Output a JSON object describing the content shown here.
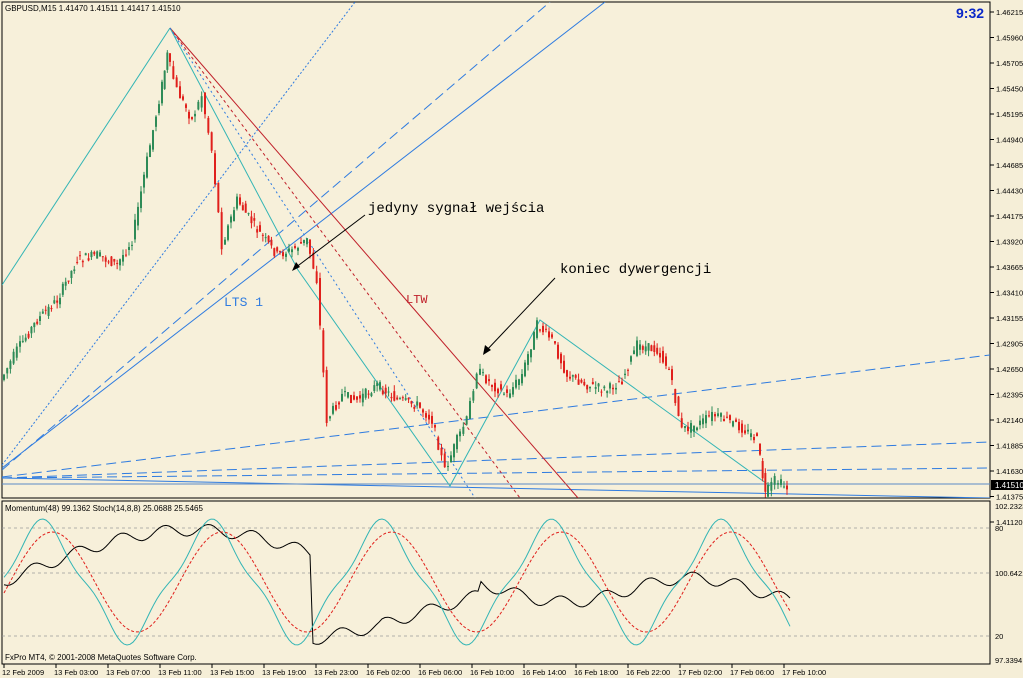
{
  "colors": {
    "background": "#F5EED7",
    "chart_bg": "#F7F0DA",
    "bull": "#2E8B57",
    "bear": "#E0201C",
    "trendline": "#2E7BE0",
    "teal": "#33B5B5",
    "ltw": "#C0202A",
    "clock": "#0B28C8"
  },
  "header": {
    "symbol_info": "GBPUSD,M15  1.41470 1.41511 1.41417 1.41510",
    "clock": "9:32"
  },
  "annotations": {
    "entry_signal": "jedyny sygnał wejścia",
    "divergence_end": "koniec dywergencji",
    "lts": "LTS 1",
    "ltw": "LTW"
  },
  "price_axis": {
    "labels": [
      "1.46215",
      "1.45960",
      "1.45705",
      "1.45450",
      "1.45195",
      "1.44940",
      "1.44685",
      "1.44430",
      "1.44175",
      "1.43920",
      "1.43665",
      "1.43410",
      "1.43155",
      "1.42905",
      "1.42650",
      "1.42395",
      "1.42140",
      "1.41885",
      "1.41630",
      "1.41375",
      "1.41120"
    ],
    "current_price": "1.41510"
  },
  "indicator": {
    "label": "Momentum(48) 99.1362  Stoch(14,8,8) 25.0688 25.5465",
    "axis_labels": [
      "102.2323",
      "80",
      "100.6421",
      "20",
      "97.3394"
    ]
  },
  "time_axis": {
    "labels": [
      "12 Feb 2009",
      "13 Feb 03:00",
      "13 Feb 07:00",
      "13 Feb 11:00",
      "13 Feb 15:00",
      "13 Feb 19:00",
      "13 Feb 23:00",
      "16 Feb 02:00",
      "16 Feb 06:00",
      "16 Feb 10:00",
      "16 Feb 14:00",
      "16 Feb 18:00",
      "16 Feb 22:00",
      "17 Feb 02:00",
      "17 Feb 06:00",
      "17 Feb 10:00"
    ]
  },
  "footer": {
    "copyright": "FxPro MT4, © 2001-2008 MetaQuotes Software Corp."
  }
}
